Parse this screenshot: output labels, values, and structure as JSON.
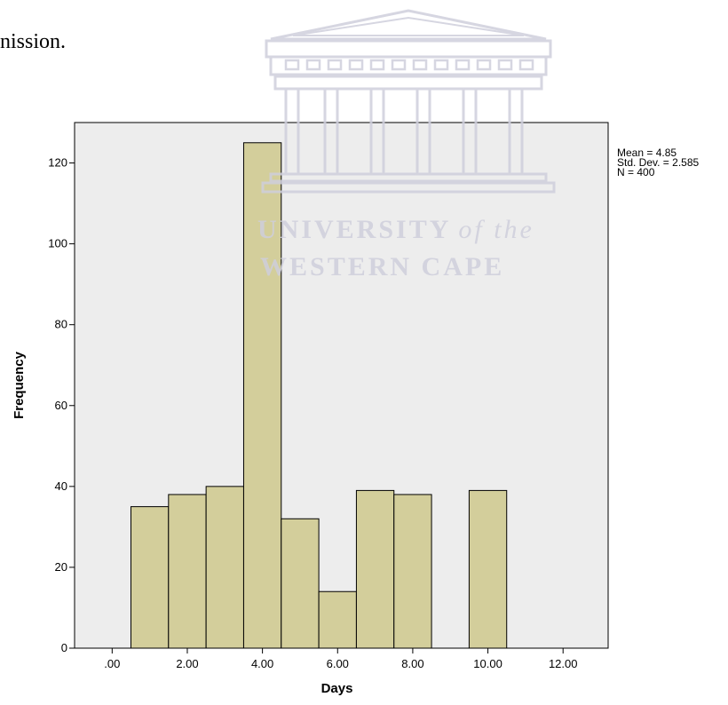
{
  "page": {
    "fragment_text": "nission."
  },
  "watermark": {
    "line1": "UNIVERSITY",
    "line1_suffix": "of the",
    "line2": "WESTERN CAPE",
    "color": "#cfcfdc"
  },
  "chart_data": {
    "type": "bar",
    "title": "",
    "xlabel": "Days",
    "ylabel": "Frequency",
    "xlim": [
      -1,
      13.2
    ],
    "ylim": [
      0,
      130
    ],
    "bin_width": 1,
    "bins": [
      {
        "center": 1,
        "value": 35
      },
      {
        "center": 2,
        "value": 38
      },
      {
        "center": 3,
        "value": 40
      },
      {
        "center": 4,
        "value": 125
      },
      {
        "center": 5,
        "value": 32
      },
      {
        "center": 6,
        "value": 14
      },
      {
        "center": 7,
        "value": 39
      },
      {
        "center": 8,
        "value": 38
      },
      {
        "center": 10,
        "value": 39
      }
    ],
    "x_ticks": [
      {
        "value": 0,
        "label": ".00"
      },
      {
        "value": 2,
        "label": "2.00"
      },
      {
        "value": 4,
        "label": "4.00"
      },
      {
        "value": 6,
        "label": "6.00"
      },
      {
        "value": 8,
        "label": "8.00"
      },
      {
        "value": 10,
        "label": "10.00"
      },
      {
        "value": 12,
        "label": "12.00"
      }
    ],
    "y_ticks": [
      0,
      20,
      40,
      60,
      80,
      100,
      120
    ],
    "stats": [
      "Mean = 4.85",
      "Std. Dev. = 2.585",
      "N = 400"
    ],
    "colors": {
      "plot_background": "#ededed",
      "bar_fill": "#d3ce9b",
      "bar_stroke": "#000000"
    },
    "grid": false,
    "stats_placement": "right of plot, top"
  }
}
